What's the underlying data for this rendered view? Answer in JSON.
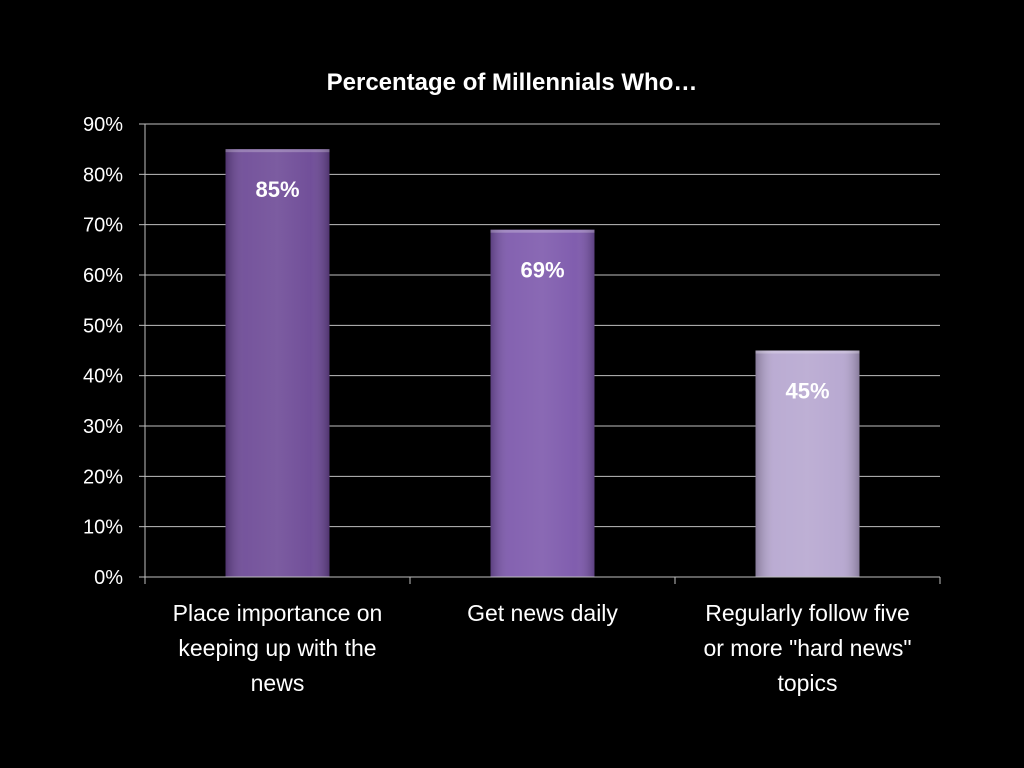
{
  "chart_data": {
    "type": "bar",
    "title": "Percentage of Millennials Who…",
    "categories": [
      [
        "Place importance on",
        "keeping up with the",
        "news"
      ],
      [
        "Get news daily"
      ],
      [
        "Regularly follow five",
        "or more \"hard news\"",
        "topics"
      ]
    ],
    "values": [
      85,
      69,
      45
    ],
    "data_labels": [
      "85%",
      "69%",
      "45%"
    ],
    "bar_colors": [
      "#6a4694",
      "#7a55aa",
      "#b5a5cf"
    ],
    "ylim": [
      0,
      90
    ],
    "ytick_step": 10,
    "ytick_suffix": "%",
    "grid": true,
    "legend": "none",
    "xlabel": "",
    "ylabel": ""
  }
}
